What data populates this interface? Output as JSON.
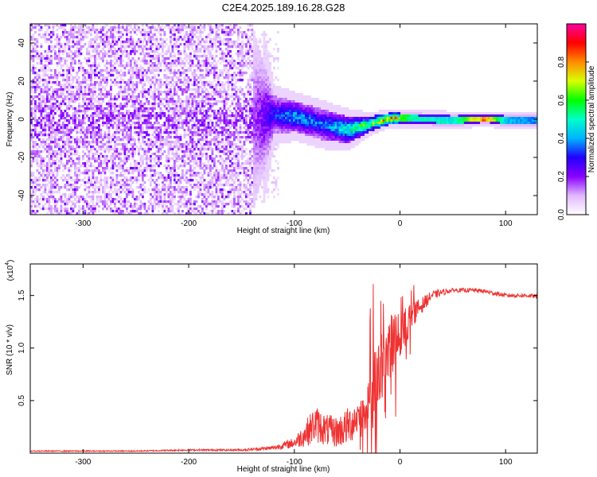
{
  "title": "C2E4.2025.189.16.28.G28",
  "chart_data": [
    {
      "type": "heatmap",
      "title": "",
      "xlabel": "Height of straight line (km)",
      "ylabel": "Frequency (Hz)",
      "xlim": [
        -350,
        130
      ],
      "ylim": [
        -50,
        50
      ],
      "xticks": [
        -300,
        -200,
        -100,
        0,
        100
      ],
      "yticks": [
        -40,
        -20,
        0,
        20,
        40
      ],
      "colorbar": {
        "label": "Normalized spectral amplitude",
        "range": [
          0,
          1
        ],
        "ticks": [
          "0.0",
          "0.2",
          "0.4",
          "0.6",
          "0.8"
        ],
        "colors": [
          "#ffffff",
          "#e0b8ff",
          "#8a00ff",
          "#2000ff",
          "#00b4ff",
          "#00ffc8",
          "#00ff00",
          "#d8ff00",
          "#ff8c00",
          "#ff0000",
          "#ff00a0"
        ]
      },
      "band": {
        "description_points": [
          {
            "x": -350,
            "center": 0,
            "halfwidth": 50,
            "amp": 0.1
          },
          {
            "x": -200,
            "center": 0,
            "halfwidth": 50,
            "amp": 0.12
          },
          {
            "x": -140,
            "center": 0,
            "halfwidth": 48,
            "amp": 0.15
          },
          {
            "x": -120,
            "center": 3,
            "halfwidth": 10,
            "amp": 0.3
          },
          {
            "x": -100,
            "center": 2,
            "halfwidth": 8,
            "amp": 0.4
          },
          {
            "x": -75,
            "center": -2,
            "halfwidth": 8,
            "amp": 0.35
          },
          {
            "x": -50,
            "center": -5,
            "halfwidth": 7,
            "amp": 0.5
          },
          {
            "x": -30,
            "center": -2,
            "halfwidth": 4,
            "amp": 0.6
          },
          {
            "x": -10,
            "center": 1,
            "halfwidth": 3,
            "amp": 0.8
          },
          {
            "x": 10,
            "center": 1,
            "halfwidth": 3,
            "amp": 0.55
          },
          {
            "x": 50,
            "center": 0,
            "halfwidth": 3,
            "amp": 0.5
          },
          {
            "x": 80,
            "center": 1,
            "halfwidth": 2.5,
            "amp": 0.9
          },
          {
            "x": 100,
            "center": 0,
            "halfwidth": 3,
            "amp": 0.45
          },
          {
            "x": 130,
            "center": 0,
            "halfwidth": 3,
            "amp": 0.4
          }
        ]
      }
    },
    {
      "type": "line",
      "title": "",
      "xlabel": "Height of straight line (km)",
      "ylabel": "SNR (10 * v/v)",
      "y_multiplier": "(x10",
      "y_multiplier_exp": "4",
      "y_multiplier_close": ")",
      "xlim": [
        -350,
        130
      ],
      "ylim": [
        0,
        1.8
      ],
      "xticks": [
        -300,
        -200,
        -100,
        0,
        100
      ],
      "yticks": [
        0.5,
        1.0,
        1.5
      ],
      "ytick_labels": [
        "0.5",
        "1.0",
        "1.5"
      ],
      "line_color": "#ee3333",
      "series": [
        {
          "values_description": "SNR in units of 10^4",
          "x": [
            -350,
            -300,
            -250,
            -200,
            -150,
            -120,
            -100,
            -90,
            -80,
            -70,
            -60,
            -50,
            -40,
            -30,
            -25,
            -20,
            -15,
            -10,
            -5,
            0,
            5,
            10,
            15,
            20,
            30,
            40,
            50,
            60,
            70,
            80,
            90,
            100,
            110,
            120,
            130
          ],
          "y": [
            0.02,
            0.02,
            0.02,
            0.03,
            0.03,
            0.05,
            0.1,
            0.18,
            0.28,
            0.22,
            0.2,
            0.25,
            0.35,
            0.45,
            0.55,
            0.75,
            0.9,
            1.0,
            1.05,
            1.1,
            1.2,
            1.3,
            1.35,
            1.4,
            1.5,
            1.53,
            1.55,
            1.55,
            1.55,
            1.54,
            1.52,
            1.5,
            1.5,
            1.5,
            1.49
          ],
          "noise": [
            0.005,
            0.005,
            0.005,
            0.008,
            0.01,
            0.02,
            0.05,
            0.12,
            0.18,
            0.15,
            0.15,
            0.18,
            0.2,
            0.3,
            0.45,
            0.35,
            0.3,
            0.3,
            0.3,
            0.25,
            0.2,
            0.15,
            0.1,
            0.08,
            0.04,
            0.03,
            0.02,
            0.02,
            0.02,
            0.02,
            0.02,
            0.02,
            0.02,
            0.02,
            0.02
          ]
        }
      ]
    }
  ]
}
